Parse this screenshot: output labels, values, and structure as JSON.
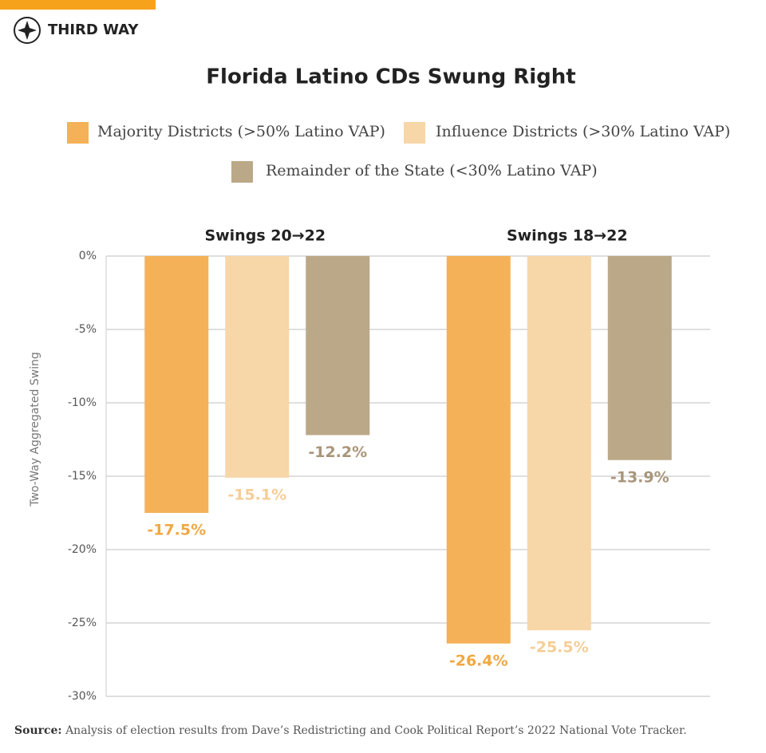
{
  "brand": "THIRD WAY",
  "chart_data": {
    "type": "bar",
    "title": "Florida Latino CDs Swung Right",
    "y_label": "Two-Way Aggregated Swing",
    "categories": [
      "Swings 20→22",
      "Swings 18→22"
    ],
    "series": [
      {
        "name": "Majority Districts (>50% Latino VAP)",
        "color": "#f4b157",
        "label_color": "#f0a843",
        "values": [
          -17.5,
          -26.4
        ],
        "value_labels": [
          "-17.5%",
          "-26.4%"
        ]
      },
      {
        "name": "Influence Districts (>30% Latino VAP)",
        "color": "#f7d6a8",
        "label_color": "#f5cd96",
        "values": [
          -15.1,
          -25.5
        ],
        "value_labels": [
          "-15.1%",
          "-25.5%"
        ]
      },
      {
        "name": "Remainder of the State (<30% Latino VAP)",
        "color": "#bba888",
        "label_color": "#a8957a",
        "values": [
          -12.2,
          -13.9
        ],
        "value_labels": [
          "-12.2%",
          "-13.9%"
        ]
      }
    ],
    "ylim": [
      -30,
      0
    ],
    "yticks": [
      {
        "value": 0,
        "label": "0%"
      },
      {
        "value": -5,
        "label": "-5%"
      },
      {
        "value": -10,
        "label": "-10%"
      },
      {
        "value": -15,
        "label": "-15%"
      },
      {
        "value": -20,
        "label": "-20%"
      },
      {
        "value": -25,
        "label": "-25%"
      },
      {
        "value": -30,
        "label": "-30%"
      }
    ],
    "grid": true,
    "source_label": "Source:",
    "source_text": "Analysis of election results from Dave’s Redistricting and Cook Political Report’s 2022 National Vote Tracker."
  }
}
